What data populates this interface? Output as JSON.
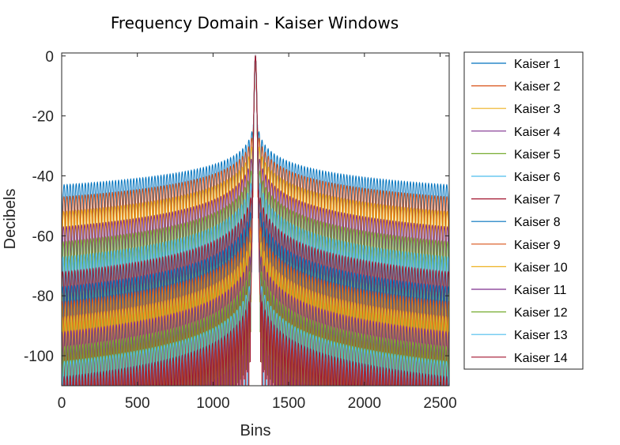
{
  "chart_data": {
    "type": "line",
    "title": "Frequency Domain - Kaiser Windows",
    "xlabel": "Bins",
    "ylabel": "Decibels",
    "xlim": [
      0,
      2560
    ],
    "ylim": [
      -110,
      1
    ],
    "x_ticks": [
      0,
      500,
      1000,
      1500,
      2000,
      2500
    ],
    "y_ticks": [
      0,
      -20,
      -40,
      -60,
      -80,
      -100
    ],
    "x_tick_labels": [
      "0",
      "500",
      "1000",
      "1500",
      "2000",
      "2500"
    ],
    "y_tick_labels": [
      "0",
      "-20",
      "-40",
      "-60",
      "-80",
      "-100"
    ],
    "grid": false,
    "legend_position": "outside-right",
    "center_bin": 1280,
    "ripple_period_bins": 20,
    "series": [
      {
        "name": "Kaiser 1",
        "color": "#0072BD",
        "edge_sidelobe_peak_db": -43,
        "near_sidelobe_peak_db": -23
      },
      {
        "name": "Kaiser 2",
        "color": "#D95319",
        "edge_sidelobe_peak_db": -47,
        "near_sidelobe_peak_db": -25
      },
      {
        "name": "Kaiser 3",
        "color": "#EDB120",
        "edge_sidelobe_peak_db": -52,
        "near_sidelobe_peak_db": -28
      },
      {
        "name": "Kaiser 4",
        "color": "#7E2F8E",
        "edge_sidelobe_peak_db": -57,
        "near_sidelobe_peak_db": -32
      },
      {
        "name": "Kaiser 5",
        "color": "#77AC30",
        "edge_sidelobe_peak_db": -62,
        "near_sidelobe_peak_db": -36
      },
      {
        "name": "Kaiser 6",
        "color": "#4DBEEE",
        "edge_sidelobe_peak_db": -67,
        "near_sidelobe_peak_db": -40
      },
      {
        "name": "Kaiser 7",
        "color": "#A2142F",
        "edge_sidelobe_peak_db": -72,
        "near_sidelobe_peak_db": -45
      },
      {
        "name": "Kaiser 8",
        "color": "#0072BD",
        "edge_sidelobe_peak_db": -77,
        "near_sidelobe_peak_db": -50
      },
      {
        "name": "Kaiser 9",
        "color": "#D95319",
        "edge_sidelobe_peak_db": -82,
        "near_sidelobe_peak_db": -55
      },
      {
        "name": "Kaiser 10",
        "color": "#EDB120",
        "edge_sidelobe_peak_db": -87,
        "near_sidelobe_peak_db": -60
      },
      {
        "name": "Kaiser 11",
        "color": "#7E2F8E",
        "edge_sidelobe_peak_db": -92,
        "near_sidelobe_peak_db": -65
      },
      {
        "name": "Kaiser 12",
        "color": "#77AC30",
        "edge_sidelobe_peak_db": -97,
        "near_sidelobe_peak_db": -70
      },
      {
        "name": "Kaiser 13",
        "color": "#4DBEEE",
        "edge_sidelobe_peak_db": -102,
        "near_sidelobe_peak_db": -75
      },
      {
        "name": "Kaiser 14",
        "color": "#A2142F",
        "edge_sidelobe_peak_db": -107,
        "near_sidelobe_peak_db": -80
      }
    ]
  }
}
